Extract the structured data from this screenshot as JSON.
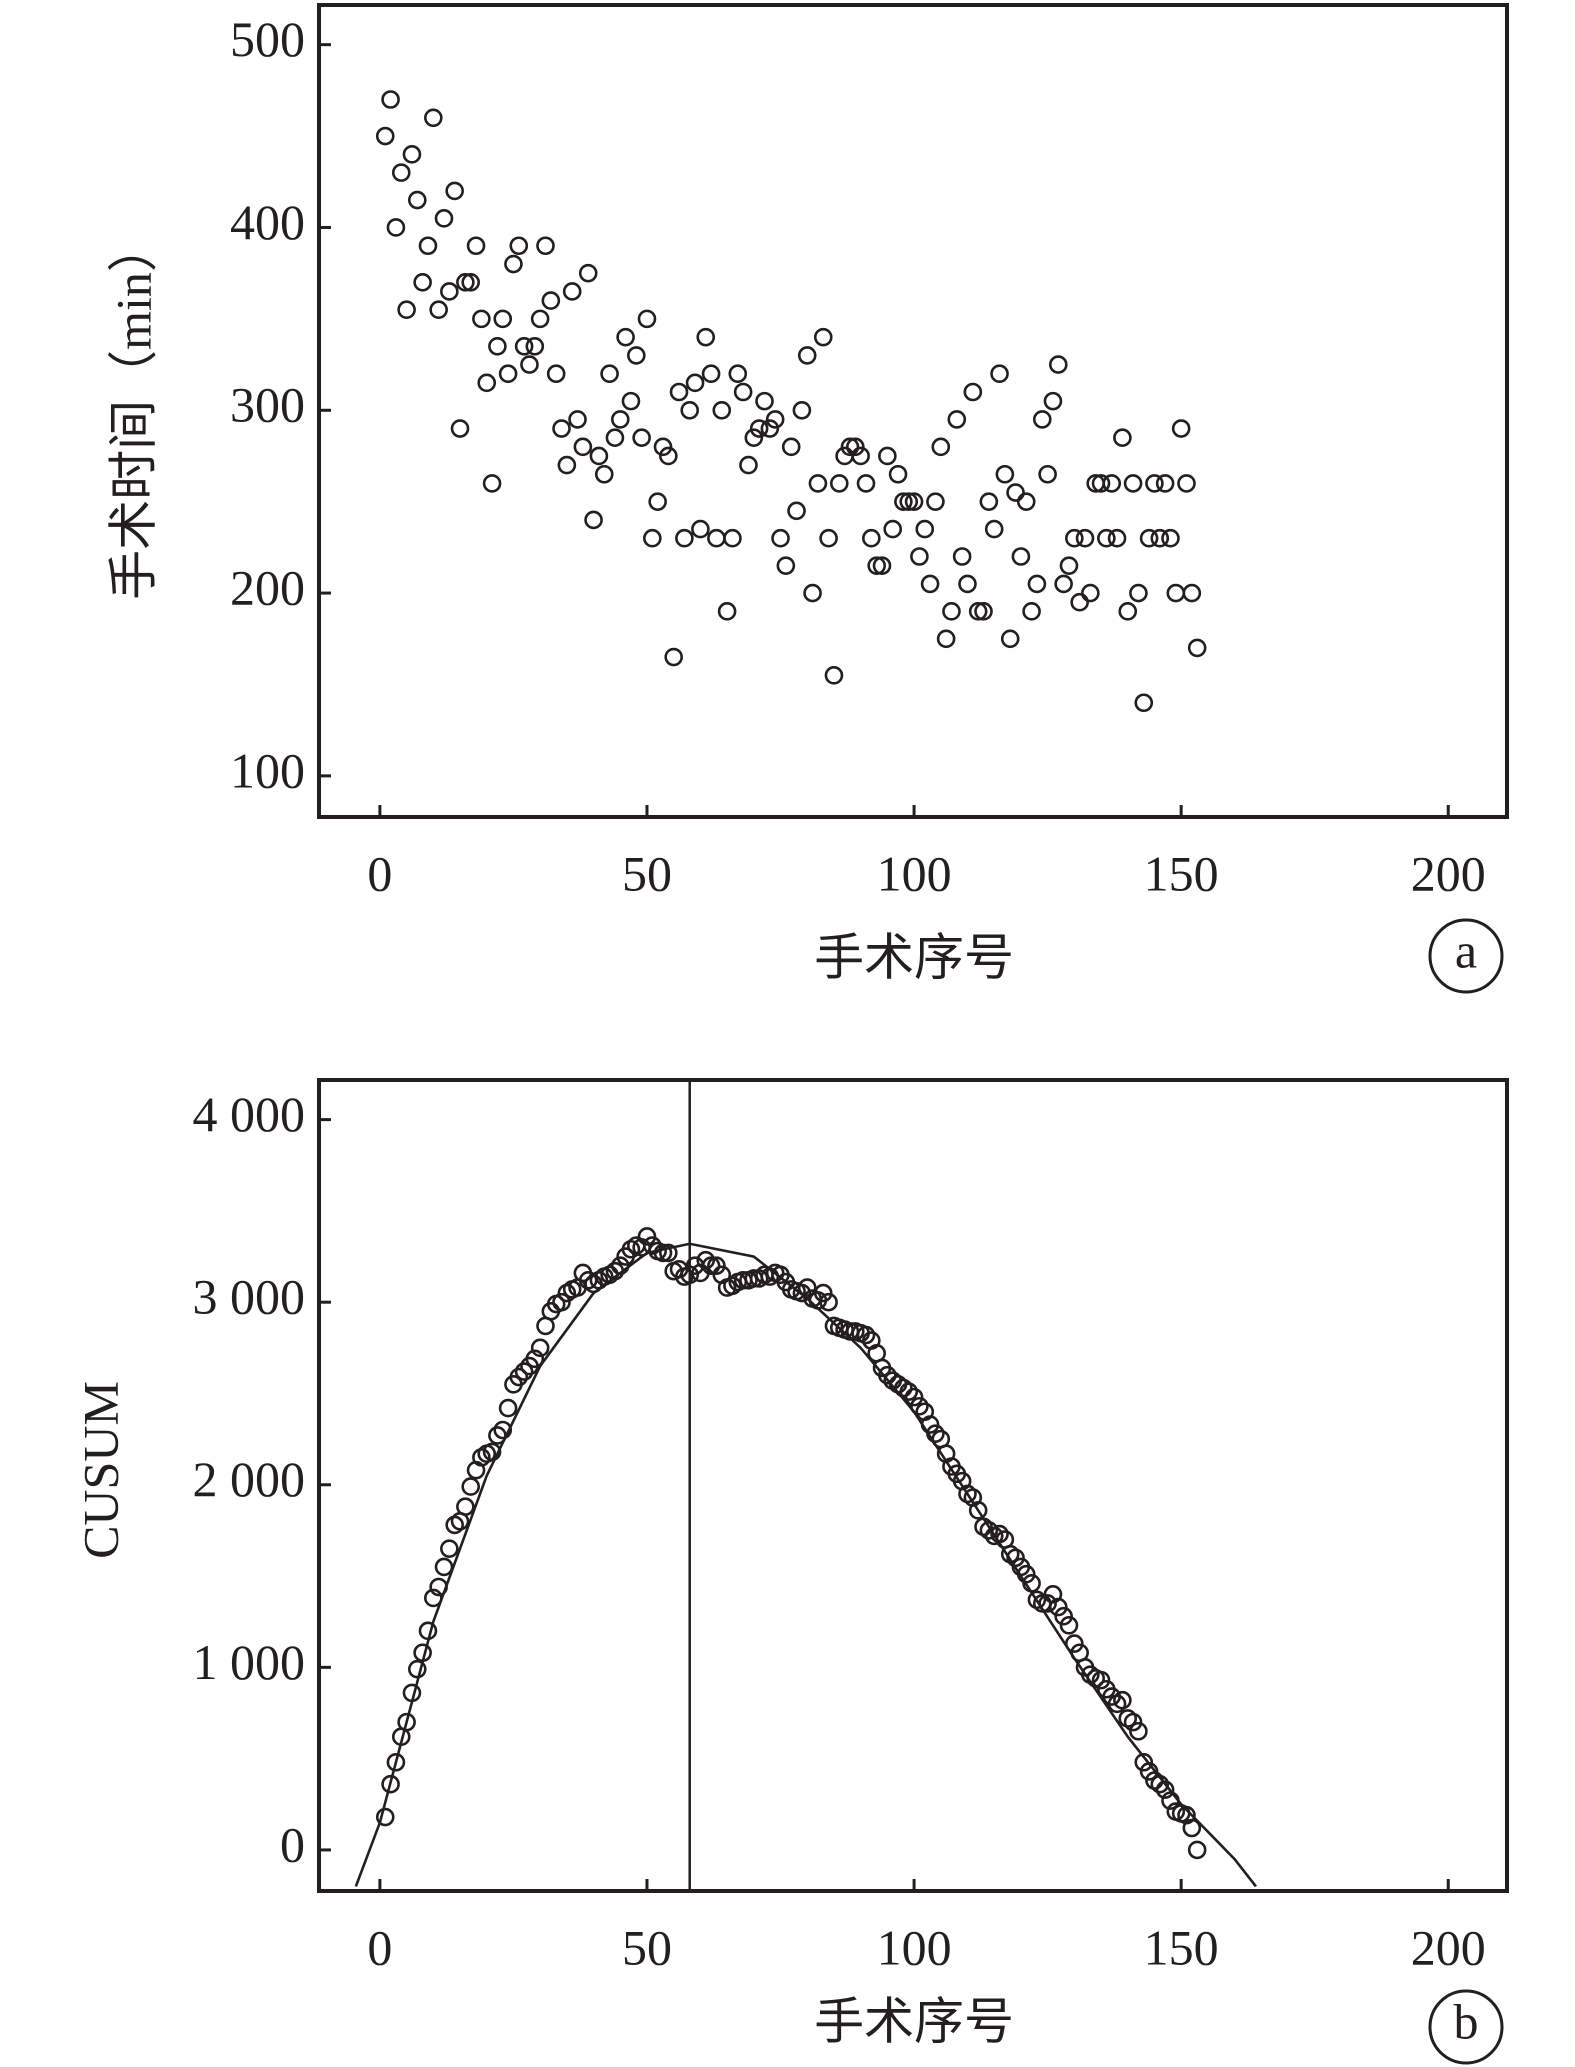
{
  "chart_data": [
    {
      "type": "scatter",
      "panel_label": "a",
      "x_label": "手术序号",
      "y_label": "手术时间（min）",
      "xlim": [
        -11.4,
        211
      ],
      "xticks": [
        0,
        50,
        100,
        150,
        200
      ],
      "ylim": [
        77.5,
        521.7
      ],
      "yticks": [
        100,
        200,
        300,
        400,
        500
      ],
      "color": "#231f20",
      "x": [
        1,
        2,
        3,
        4,
        5,
        6,
        7,
        8,
        9,
        10,
        11,
        12,
        13,
        14,
        15,
        16,
        17,
        18,
        19,
        20,
        21,
        22,
        23,
        24,
        25,
        26,
        27,
        28,
        29,
        30,
        31,
        32,
        33,
        34,
        35,
        36,
        37,
        38,
        39,
        40,
        41,
        42,
        43,
        44,
        45,
        46,
        47,
        48,
        49,
        50,
        51,
        52,
        53,
        54,
        55,
        56,
        57,
        58,
        59,
        60,
        61,
        62,
        63,
        64,
        65,
        66,
        67,
        68,
        69,
        70,
        71,
        72,
        73,
        74,
        75,
        76,
        77,
        78,
        79,
        80,
        81,
        82,
        83,
        84,
        85,
        86,
        87,
        88,
        89,
        90,
        91,
        92,
        93,
        94,
        95,
        96,
        97,
        98,
        99,
        100,
        101,
        102,
        103,
        104,
        105,
        106,
        107,
        108,
        109,
        110,
        111,
        112,
        113,
        114,
        115,
        116,
        117,
        118,
        119,
        120,
        121,
        122,
        123,
        124,
        125,
        126,
        127,
        128,
        129,
        130,
        131,
        132,
        133,
        134,
        135,
        136,
        137,
        138,
        139,
        140,
        141,
        142,
        143,
        144,
        145,
        146,
        147,
        148,
        149,
        150,
        151,
        152,
        153
      ],
      "values": [
        450,
        470,
        400,
        430,
        355,
        440,
        415,
        370,
        390,
        460,
        355,
        405,
        365,
        420,
        290,
        370,
        370,
        390,
        350,
        315,
        260,
        335,
        350,
        320,
        380,
        390,
        335,
        325,
        335,
        350,
        390,
        360,
        320,
        290,
        270,
        365,
        295,
        280,
        375,
        240,
        275,
        265,
        320,
        285,
        295,
        340,
        305,
        330,
        285,
        350,
        230,
        250,
        280,
        275,
        165,
        310,
        230,
        300,
        315,
        235,
        340,
        320,
        230,
        300,
        190,
        230,
        320,
        310,
        270,
        285,
        290,
        305,
        290,
        295,
        230,
        215,
        280,
        245,
        300,
        330,
        200,
        260,
        340,
        230,
        155,
        260,
        275,
        280,
        280,
        275,
        260,
        230,
        215,
        215,
        275,
        235,
        265,
        250,
        250,
        250,
        220,
        235,
        205,
        250,
        280,
        175,
        190,
        295,
        220,
        205,
        310,
        190,
        190,
        250,
        235,
        320,
        265,
        175,
        255,
        220,
        250,
        190,
        205,
        295,
        265,
        305,
        325,
        205,
        215,
        230,
        195,
        230,
        200,
        260,
        260,
        230,
        260,
        230,
        285,
        190,
        260,
        200,
        140,
        230,
        260,
        230,
        260,
        230,
        200,
        290,
        260,
        200,
        170
      ]
    },
    {
      "type": "scatter",
      "panel_label": "b",
      "x_label": "手术序号",
      "y_label": "CUSUM",
      "xlim": [
        -11.4,
        211
      ],
      "xticks": [
        0,
        50,
        100,
        150,
        200
      ],
      "ylim": [
        -225,
        4217
      ],
      "yticks": [
        0,
        {
          "value": 1000,
          "label": "1 000"
        },
        {
          "value": 2000,
          "label": "2 000"
        },
        {
          "value": 3000,
          "label": "3 000"
        },
        {
          "value": 4000,
          "label": "4 000"
        }
      ],
      "color": "#231f20",
      "vline": 58,
      "x": [
        1,
        2,
        3,
        4,
        5,
        6,
        7,
        8,
        9,
        10,
        11,
        12,
        13,
        14,
        15,
        16,
        17,
        18,
        19,
        20,
        21,
        22,
        23,
        24,
        25,
        26,
        27,
        28,
        29,
        30,
        31,
        32,
        33,
        34,
        35,
        36,
        37,
        38,
        39,
        40,
        41,
        42,
        43,
        44,
        45,
        46,
        47,
        48,
        49,
        50,
        51,
        52,
        53,
        54,
        55,
        56,
        57,
        58,
        59,
        60,
        61,
        62,
        63,
        64,
        65,
        66,
        67,
        68,
        69,
        70,
        71,
        72,
        73,
        74,
        75,
        76,
        77,
        78,
        79,
        80,
        81,
        82,
        83,
        84,
        85,
        86,
        87,
        88,
        89,
        90,
        91,
        92,
        93,
        94,
        95,
        96,
        97,
        98,
        99,
        100,
        101,
        102,
        103,
        104,
        105,
        106,
        107,
        108,
        109,
        110,
        111,
        112,
        113,
        114,
        115,
        116,
        117,
        118,
        119,
        120,
        121,
        122,
        123,
        124,
        125,
        126,
        127,
        128,
        129,
        130,
        131,
        132,
        133,
        134,
        135,
        136,
        137,
        138,
        139,
        140,
        141,
        142,
        143,
        144,
        145,
        146,
        147,
        148,
        149,
        150,
        151,
        152,
        153
      ],
      "values": [
        180,
        360,
        480,
        620,
        700,
        860,
        990,
        1080,
        1200,
        1380,
        1440,
        1550,
        1650,
        1780,
        1800,
        1880,
        1990,
        2080,
        2150,
        2170,
        2180,
        2270,
        2300,
        2420,
        2550,
        2590,
        2620,
        2650,
        2690,
        2750,
        2870,
        2950,
        2990,
        3000,
        3050,
        3070,
        3080,
        3160,
        3120,
        3100,
        3120,
        3140,
        3150,
        3170,
        3200,
        3250,
        3290,
        3310,
        3300,
        3360,
        3310,
        3280,
        3270,
        3270,
        3170,
        3180,
        3140,
        3150,
        3200,
        3160,
        3230,
        3200,
        3200,
        3150,
        3080,
        3090,
        3110,
        3120,
        3120,
        3130,
        3130,
        3150,
        3140,
        3160,
        3150,
        3110,
        3070,
        3060,
        3050,
        3080,
        3020,
        3010,
        3050,
        3000,
        2870,
        2860,
        2850,
        2840,
        2840,
        2830,
        2820,
        2790,
        2720,
        2640,
        2600,
        2570,
        2550,
        2530,
        2510,
        2480,
        2430,
        2400,
        2330,
        2280,
        2250,
        2170,
        2100,
        2060,
        2020,
        1950,
        1930,
        1860,
        1770,
        1750,
        1720,
        1730,
        1700,
        1620,
        1600,
        1550,
        1510,
        1460,
        1370,
        1350,
        1350,
        1400,
        1330,
        1280,
        1230,
        1130,
        1080,
        1000,
        960,
        940,
        930,
        880,
        840,
        800,
        820,
        720,
        700,
        650,
        480,
        430,
        380,
        360,
        330,
        270,
        210,
        200,
        190,
        120,
        0
      ],
      "fit": {
        "x": [
          -4.5,
          0,
          10,
          20,
          30,
          40,
          50,
          58,
          70,
          80,
          90,
          100,
          110,
          120,
          130,
          140,
          150,
          160,
          164
        ],
        "values": [
          -200,
          150,
          1250,
          2050,
          2650,
          3050,
          3270,
          3320,
          3250,
          3020,
          2750,
          2400,
          1950,
          1500,
          1050,
          620,
          250,
          -50,
          -200
        ]
      }
    }
  ]
}
